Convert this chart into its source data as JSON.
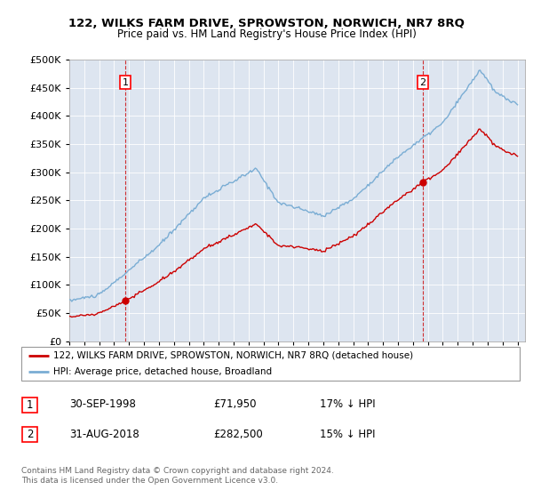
{
  "title": "122, WILKS FARM DRIVE, SPROWSTON, NORWICH, NR7 8RQ",
  "subtitle": "Price paid vs. HM Land Registry's House Price Index (HPI)",
  "background_color": "#dde5f0",
  "plot_bg_color": "#dde5f0",
  "grid_color": "#ffffff",
  "red_line_color": "#cc0000",
  "blue_line_color": "#7aadd4",
  "t1": 1998.75,
  "p1": 71950,
  "t2": 2018.67,
  "p2": 282500,
  "legend_label_red": "122, WILKS FARM DRIVE, SPROWSTON, NORWICH, NR7 8RQ (detached house)",
  "legend_label_blue": "HPI: Average price, detached house, Broadland",
  "footnote": "Contains HM Land Registry data © Crown copyright and database right 2024.\nThis data is licensed under the Open Government Licence v3.0.",
  "ylim": [
    0,
    500000
  ],
  "yticks": [
    0,
    50000,
    100000,
    150000,
    200000,
    250000,
    300000,
    350000,
    400000,
    450000,
    500000
  ],
  "xlim_start": 1995.0,
  "xlim_end": 2025.5
}
